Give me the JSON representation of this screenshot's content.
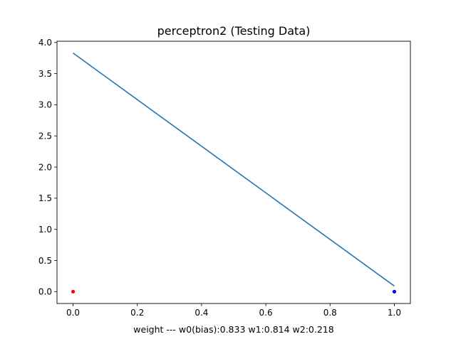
{
  "chart_data": {
    "type": "line",
    "title": "perceptron2 (Testing Data)",
    "xlabel": "weight  ---  w0(bias):0.833   w1:0.814   w2:0.218",
    "ylabel": "",
    "xlim": [
      -0.05,
      1.05
    ],
    "ylim": [
      -0.19,
      4.02
    ],
    "xticks": [
      0.0,
      0.2,
      0.4,
      0.6,
      0.8,
      1.0
    ],
    "xtick_labels": [
      "0.0",
      "0.2",
      "0.4",
      "0.6",
      "0.8",
      "1.0"
    ],
    "yticks": [
      0.0,
      0.5,
      1.0,
      1.5,
      2.0,
      2.5,
      3.0,
      3.5,
      4.0
    ],
    "ytick_labels": [
      "0.0",
      "0.5",
      "1.0",
      "1.5",
      "2.0",
      "2.5",
      "3.0",
      "3.5",
      "4.0"
    ],
    "grid": false,
    "series": [
      {
        "kind": "line",
        "color": "#1f77b4",
        "x": [
          0.0,
          1.0
        ],
        "y": [
          3.83,
          0.09
        ]
      },
      {
        "kind": "scatter",
        "color": "#ff0000",
        "x": [
          0.0
        ],
        "y": [
          0.0
        ]
      },
      {
        "kind": "scatter",
        "color": "#0000ff",
        "x": [
          1.0
        ],
        "y": [
          0.0
        ]
      }
    ]
  }
}
